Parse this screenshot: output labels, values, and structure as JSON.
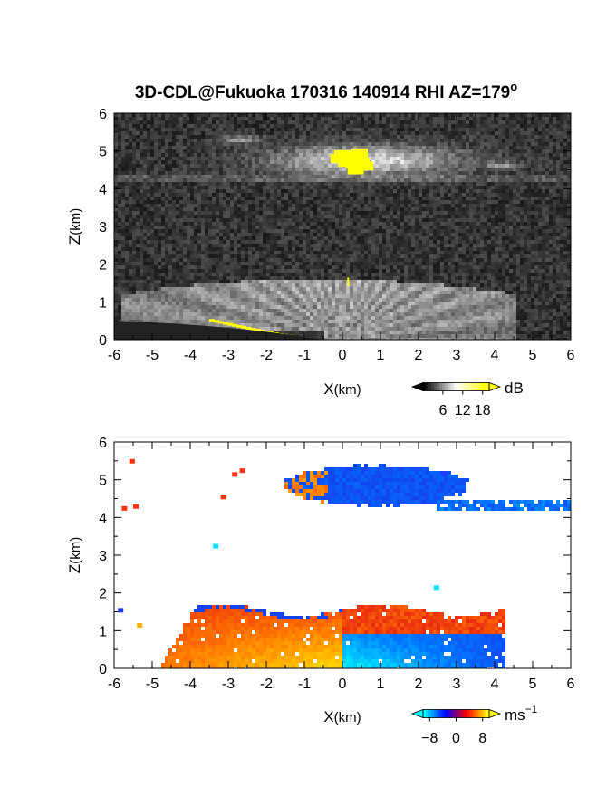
{
  "chart_data": [
    {
      "type": "heatmap",
      "title": "3D-CDL@Fukuoka 170316 140914 RHI AZ=179",
      "title_superscript": "o",
      "xlabel_main": "X",
      "xlabel_unit": "(km)",
      "ylabel_main": "Z",
      "ylabel_unit": "(km)",
      "xlim": [
        -6,
        6
      ],
      "ylim": [
        0,
        6
      ],
      "xticks": [
        "-6",
        "-5",
        "-4",
        "-3",
        "-2",
        "-1",
        "0",
        "1",
        "2",
        "3",
        "4",
        "5",
        "6"
      ],
      "yticks": [
        "0",
        "1",
        "2",
        "3",
        "4",
        "5",
        "6"
      ],
      "colorbar": {
        "label": "dB",
        "ticks": [
          "6",
          "12",
          "18"
        ],
        "tick_values": [
          6,
          12,
          18
        ],
        "range": [
          0,
          20
        ],
        "colors": [
          "#000000",
          "#ffffff",
          "#ffff00"
        ]
      },
      "features": [
        {
          "kind": "background_noise",
          "z": [
            0,
            6
          ],
          "level": "dark"
        },
        {
          "kind": "upper_cloud_layer",
          "x": [
            -0.3,
            4.0
          ],
          "z": [
            4.3,
            5.3
          ],
          "peak_x": 0.3,
          "peak_z": 4.7,
          "level": "bright"
        },
        {
          "kind": "thin_layer",
          "x": [
            -6,
            6
          ],
          "z": [
            4.1,
            4.4
          ],
          "level": "medium"
        },
        {
          "kind": "boundary_layer_fan",
          "x": [
            -6,
            4.5
          ],
          "z": [
            0,
            1.8
          ],
          "apex_x": 0.0,
          "level": "bright"
        },
        {
          "kind": "saturated_patch",
          "x": [
            -0.2,
            0.8
          ],
          "z": [
            4.5,
            4.9
          ],
          "color": "#ffff00"
        },
        {
          "kind": "saturated_ground_edge",
          "x": [
            -3.5,
            -0.8
          ],
          "z": [
            0,
            0.5
          ],
          "color": "#ffff00"
        }
      ]
    },
    {
      "type": "heatmap",
      "xlabel_main": "X",
      "xlabel_unit": "(km)",
      "ylabel_main": "Z",
      "ylabel_unit": "(km)",
      "xlim": [
        -6,
        6
      ],
      "ylim": [
        0,
        6
      ],
      "xticks": [
        "-6",
        "-5",
        "-4",
        "-3",
        "-2",
        "-1",
        "0",
        "1",
        "2",
        "3",
        "4",
        "5",
        "6"
      ],
      "yticks": [
        "0",
        "1",
        "2",
        "3",
        "4",
        "5",
        "6"
      ],
      "colorbar": {
        "label": "ms",
        "label_superscript": "−1",
        "ticks": [
          "−8",
          "0",
          "8"
        ],
        "tick_values": [
          -8,
          0,
          8
        ],
        "range": [
          -10,
          10
        ],
        "colors": [
          "#00ffff",
          "#0000ff",
          "#ff0000",
          "#ffff00"
        ]
      },
      "features": [
        {
          "kind": "upper_cloud_velocity",
          "x": [
            -1.8,
            4.3
          ],
          "z": [
            4.2,
            5.6
          ],
          "sign": "negative",
          "color": "#1e3cff"
        },
        {
          "kind": "upper_cloud_edge",
          "x": [
            -1.7,
            -0.3
          ],
          "z": [
            4.4,
            5.5
          ],
          "sign": "positive",
          "color": "#ff3010"
        },
        {
          "kind": "boundary_layer_left",
          "x": [
            -4.8,
            0.0
          ],
          "z": [
            0,
            1.7
          ],
          "sign": "positive",
          "color": "#ff5a00"
        },
        {
          "kind": "boundary_layer_right",
          "x": [
            0.0,
            4.3
          ],
          "z": [
            0,
            1.4
          ],
          "sign": "negative",
          "color": "#00c0ff"
        },
        {
          "kind": "boundary_layer_top",
          "x": [
            -4.6,
            4.2
          ],
          "z": [
            1.3,
            1.8
          ],
          "sign": "positive",
          "color": "#ff3000"
        }
      ]
    }
  ]
}
